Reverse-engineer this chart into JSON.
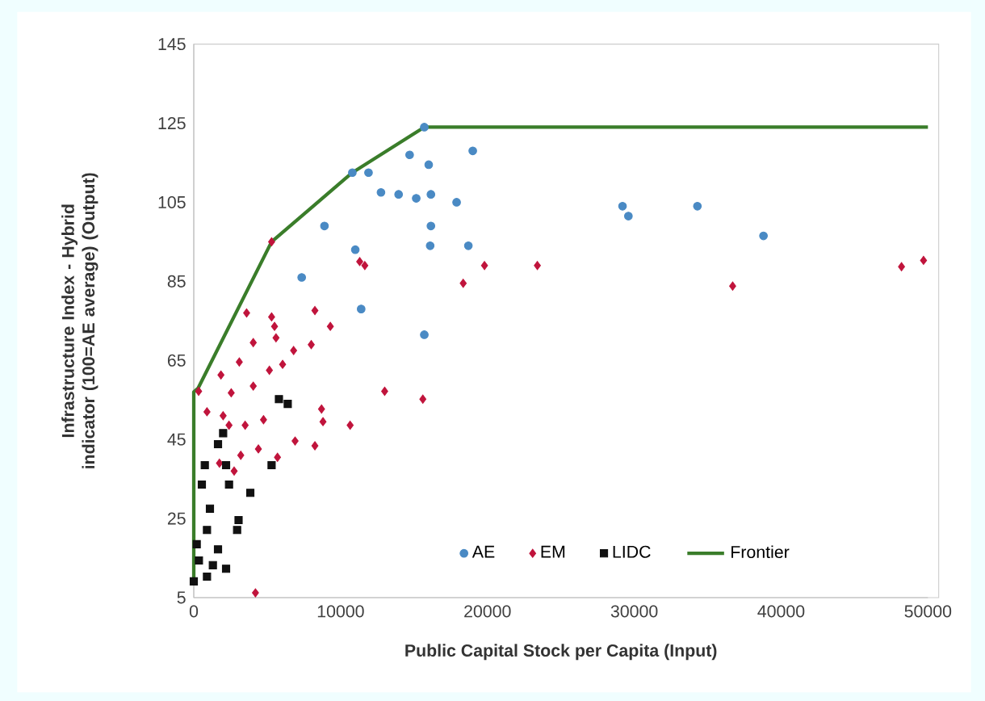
{
  "chart_data": {
    "type": "scatter",
    "xlabel": "Public Capital Stock per Capita (Input)",
    "ylabel": "Infrastructure Index - Hybrid indicator (100=AE average) (Output)",
    "xlim": [
      0,
      50000
    ],
    "ylim": [
      5,
      145
    ],
    "xticks": [
      0,
      10000,
      20000,
      30000,
      40000,
      50000
    ],
    "yticks": [
      5,
      25,
      45,
      65,
      85,
      105,
      125,
      145
    ],
    "legend": "bottom",
    "grid": false,
    "series": [
      {
        "name": "AE",
        "color": "#4a8ac4",
        "marker": "circle",
        "x": [
          15700,
          19000,
          14700,
          16000,
          10800,
          11900,
          12750,
          13950,
          15150,
          16150,
          17900,
          8900,
          16150,
          16100,
          18700,
          11000,
          7350,
          11400,
          15700,
          29200,
          29600,
          34300,
          38800
        ],
        "values": [
          124,
          118,
          117,
          114.5,
          112.5,
          112.5,
          107.5,
          107,
          106,
          107,
          105,
          99,
          99,
          94,
          94,
          93,
          86,
          78,
          71.5,
          104,
          101.5,
          104,
          96.5
        ]
      },
      {
        "name": "EM",
        "color": "#c0143c",
        "marker": "diamond",
        "x": [
          5300,
          11300,
          11650,
          19800,
          23400,
          18350,
          3600,
          8250,
          5300,
          36700,
          48200,
          49700,
          5500,
          9300,
          4050,
          5600,
          8000,
          6800,
          3100,
          6050,
          5150,
          1850,
          4050,
          330,
          2550,
          13000,
          15600,
          8700,
          900,
          2000,
          8800,
          10650,
          4750,
          3500,
          2400,
          6900,
          8250,
          4400,
          3200,
          5700,
          1750,
          2750,
          4200
        ],
        "values": [
          95,
          90,
          89,
          89,
          89,
          84.5,
          77,
          77.6,
          76,
          83.8,
          88.7,
          90.3,
          73.6,
          73.6,
          69.5,
          70.7,
          69,
          67.5,
          64.6,
          64,
          62.5,
          61.3,
          58.5,
          57.2,
          56.8,
          57.2,
          55.2,
          52.7,
          52,
          51,
          49.5,
          48.6,
          50,
          48.6,
          48.6,
          44.6,
          43.4,
          42.6,
          41,
          40.5,
          39,
          37,
          6.2
        ]
      },
      {
        "name": "LIDC",
        "color": "#111111",
        "marker": "square",
        "x": [
          5800,
          6400,
          5300,
          2000,
          1650,
          750,
          2200,
          550,
          2400,
          3850,
          1100,
          900,
          2950,
          200,
          1650,
          350,
          2200,
          900,
          0,
          3050,
          1300
        ],
        "values": [
          55.2,
          54,
          38.5,
          46.6,
          43.8,
          38.5,
          38.5,
          33.6,
          33.6,
          31.5,
          27.5,
          22.1,
          22.1,
          18.5,
          17.2,
          14.4,
          12.3,
          10.3,
          9.1,
          24.6,
          13.2
        ]
      },
      {
        "name": "Frontier",
        "type": "line",
        "color": "#3a7d2a",
        "marker": "none",
        "line_style": "solid",
        "x": [
          0,
          0,
          300,
          5300,
          10800,
          15700,
          50000
        ],
        "values": [
          9.1,
          57,
          58,
          95,
          112.5,
          124,
          124
        ]
      }
    ]
  }
}
